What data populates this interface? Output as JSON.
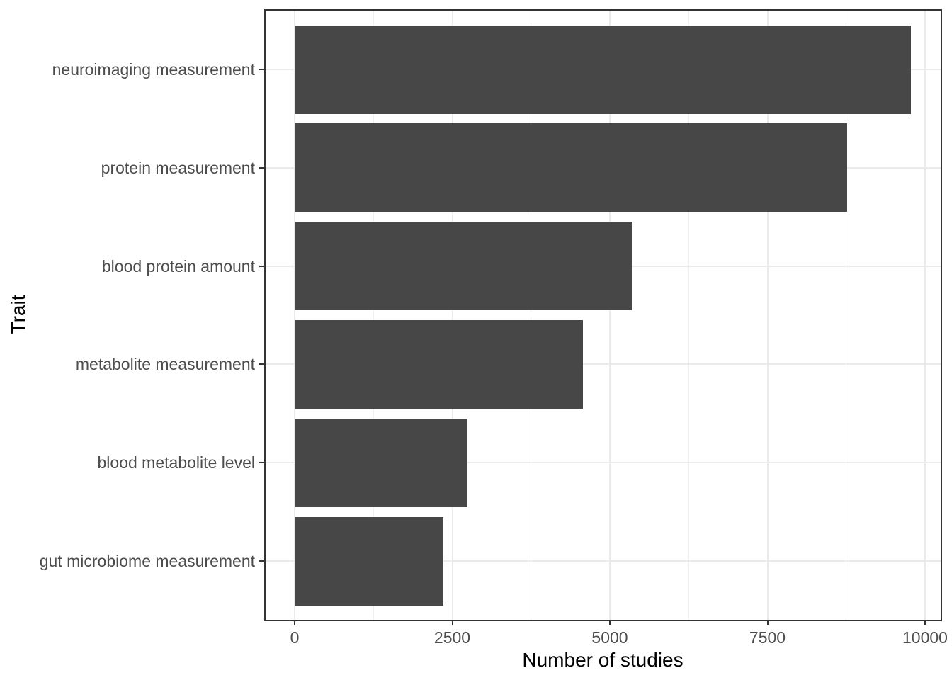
{
  "figure": {
    "background": "#FFFFFF"
  },
  "chart_data": {
    "type": "bar",
    "orientation": "horizontal",
    "title": "",
    "xlabel": "Number of studies",
    "ylabel": "Trait",
    "categories": [
      "neuroimaging measurement",
      "protein measurement",
      "blood protein amount",
      "metabolite measurement",
      "blood metabolite level",
      "gut microbiome measurement"
    ],
    "values": [
      9780,
      8760,
      5350,
      4570,
      2740,
      2360
    ],
    "x_ticks": [
      0,
      2500,
      5000,
      7500,
      10000
    ],
    "x_tick_labels": [
      "0",
      "2500",
      "5000",
      "7500",
      "10000"
    ],
    "x_minor_gridlines": [
      1250,
      3750,
      6250,
      8750
    ],
    "xlim": [
      -470,
      10250
    ],
    "grid": "vertical major+minor, horizontal major at category centers",
    "legend": "none",
    "bar_color": "#474747",
    "gridline_major_color": "#EBEBEB",
    "gridline_minor_color": "#F0F0F0",
    "panel_border_color": "#333333",
    "axis_text_color": "#4D4D4D",
    "axis_title_color": "#000000"
  }
}
